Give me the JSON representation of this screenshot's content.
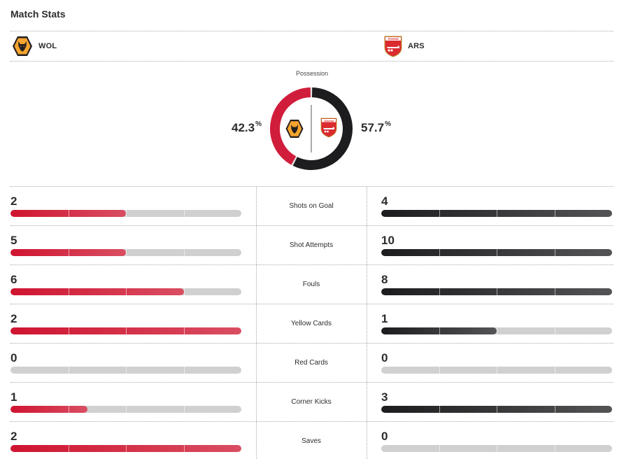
{
  "header": {
    "title": "Match Stats"
  },
  "teams": {
    "home": {
      "abbr": "WOL",
      "crest_icon": "wolves-crest-icon",
      "color": "#d11d3c",
      "crest_color": "#f6a42f"
    },
    "away": {
      "abbr": "ARS",
      "crest_icon": "arsenal-crest-icon",
      "color": "#1d1d1f",
      "crest_color": "#db2b2f",
      "crest_text": "Arsenal"
    }
  },
  "possession": {
    "label": "Possession",
    "home_value": "42.3",
    "away_value": "57.7",
    "unit": "%",
    "home_fraction": 0.423,
    "away_fraction": 0.577
  },
  "stats": [
    {
      "label": "Shots on Goal",
      "home": 2,
      "away": 4,
      "home_fill": 0.5,
      "away_fill": 1.0
    },
    {
      "label": "Shot Attempts",
      "home": 5,
      "away": 10,
      "home_fill": 0.5,
      "away_fill": 1.0
    },
    {
      "label": "Fouls",
      "home": 6,
      "away": 8,
      "home_fill": 0.75,
      "away_fill": 1.0
    },
    {
      "label": "Yellow Cards",
      "home": 2,
      "away": 1,
      "home_fill": 1.0,
      "away_fill": 0.5
    },
    {
      "label": "Red Cards",
      "home": 0,
      "away": 0,
      "home_fill": 0,
      "away_fill": 0
    },
    {
      "label": "Corner Kicks",
      "home": 1,
      "away": 3,
      "home_fill": 0.333,
      "away_fill": 1.0
    },
    {
      "label": "Saves",
      "home": 2,
      "away": 0,
      "home_fill": 1.0,
      "away_fill": 0
    }
  ]
}
